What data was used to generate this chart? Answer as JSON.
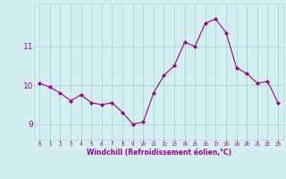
{
  "x": [
    0,
    1,
    2,
    3,
    4,
    5,
    6,
    7,
    8,
    9,
    10,
    11,
    12,
    13,
    14,
    15,
    16,
    17,
    18,
    19,
    20,
    21,
    22,
    23
  ],
  "y": [
    10.05,
    9.95,
    9.8,
    9.6,
    9.75,
    9.55,
    9.5,
    9.55,
    9.3,
    9.0,
    9.05,
    9.8,
    10.25,
    10.5,
    11.1,
    11.0,
    11.6,
    11.7,
    11.35,
    10.45,
    10.3,
    10.05,
    10.1,
    9.55
  ],
  "line_color": "#990099",
  "marker": "D",
  "marker_size": 2,
  "bg_color": "#d4efef",
  "grid_color": "#aed8d8",
  "xlabel": "Windchill (Refroidissement éolien,°C)",
  "xlabel_color": "#990099",
  "tick_color": "#990099",
  "ytick_labels": [
    "9",
    "10",
    "11"
  ],
  "ytick_vals": [
    9,
    10,
    11
  ],
  "xtick_labels": [
    "0",
    "1",
    "2",
    "3",
    "4",
    "5",
    "6",
    "7",
    "8",
    "9",
    "10",
    "11",
    "12",
    "13",
    "14",
    "15",
    "16",
    "17",
    "18",
    "19",
    "20",
    "21",
    "22",
    "23"
  ],
  "ylim": [
    8.6,
    12.1
  ],
  "xlim": [
    -0.5,
    23.5
  ]
}
